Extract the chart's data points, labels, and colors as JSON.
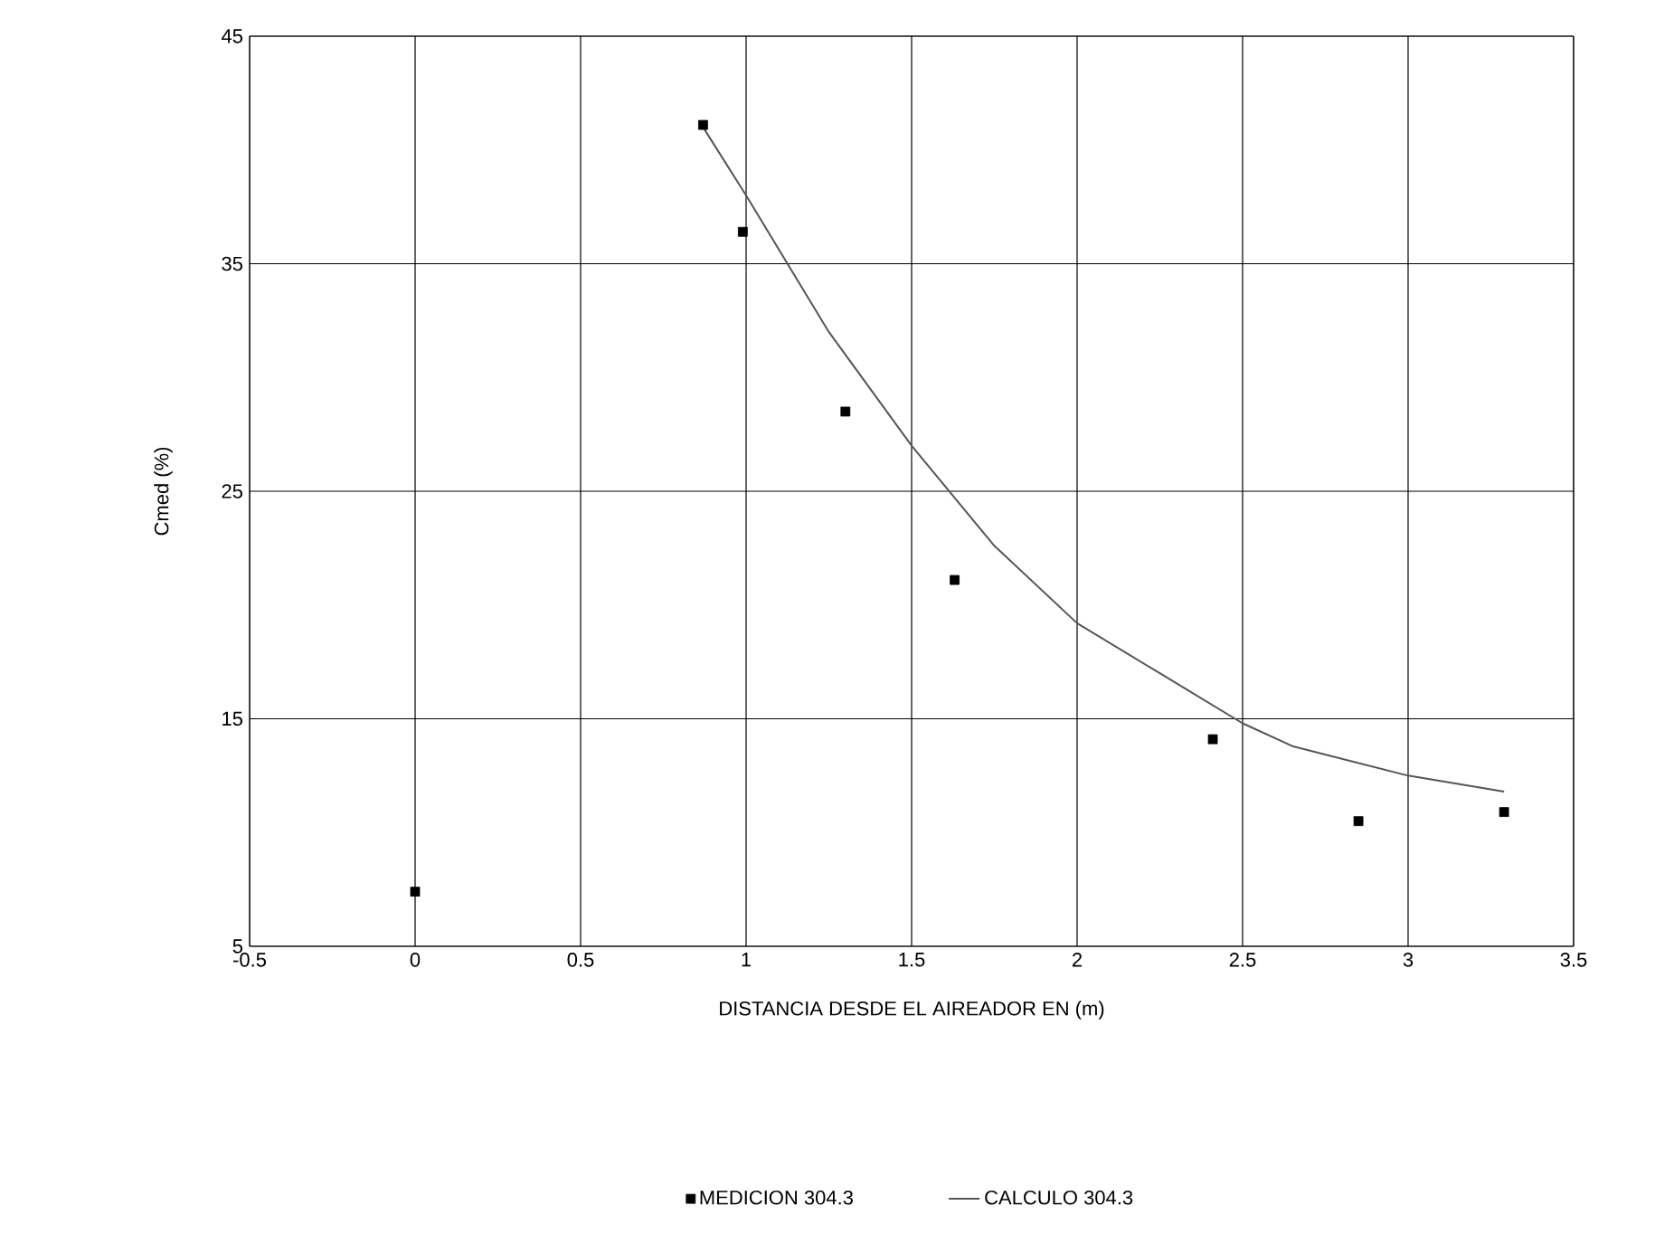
{
  "chart_data": {
    "type": "scatter",
    "xlabel": "DISTANCIA DESDE EL AIREADOR EN (m)",
    "ylabel": "Cmed (%)",
    "xlim": [
      -0.5,
      3.5
    ],
    "xticks": [
      -0.5,
      0,
      0.5,
      1,
      1.5,
      2,
      2.5,
      3,
      3.5
    ],
    "ylim": [
      5,
      45
    ],
    "yticks": [
      5,
      15,
      25,
      35,
      45
    ],
    "grid": true,
    "legend": "bottom",
    "series": [
      {
        "name": "MEDICION 304.3",
        "marker": "square",
        "color": "#000000",
        "x": [
          0,
          0.87,
          0.99,
          1.3,
          1.63,
          2.41,
          2.85,
          3.29
        ],
        "values": [
          7.4,
          41.1,
          36.4,
          28.5,
          21.1,
          14.1,
          10.5,
          10.9
        ]
      },
      {
        "name": "CALCULO 304.3",
        "type": "line",
        "marker": "none",
        "line_style": "solid",
        "color": "#555555",
        "x": [
          0.87,
          1.0,
          1.25,
          1.5,
          1.75,
          2.0,
          2.25,
          2.5,
          2.65,
          3.0,
          3.29
        ],
        "values": [
          41.0,
          38.0,
          32.0,
          27.0,
          22.6,
          19.2,
          17.0,
          14.8,
          13.8,
          12.5,
          11.8
        ]
      }
    ]
  }
}
